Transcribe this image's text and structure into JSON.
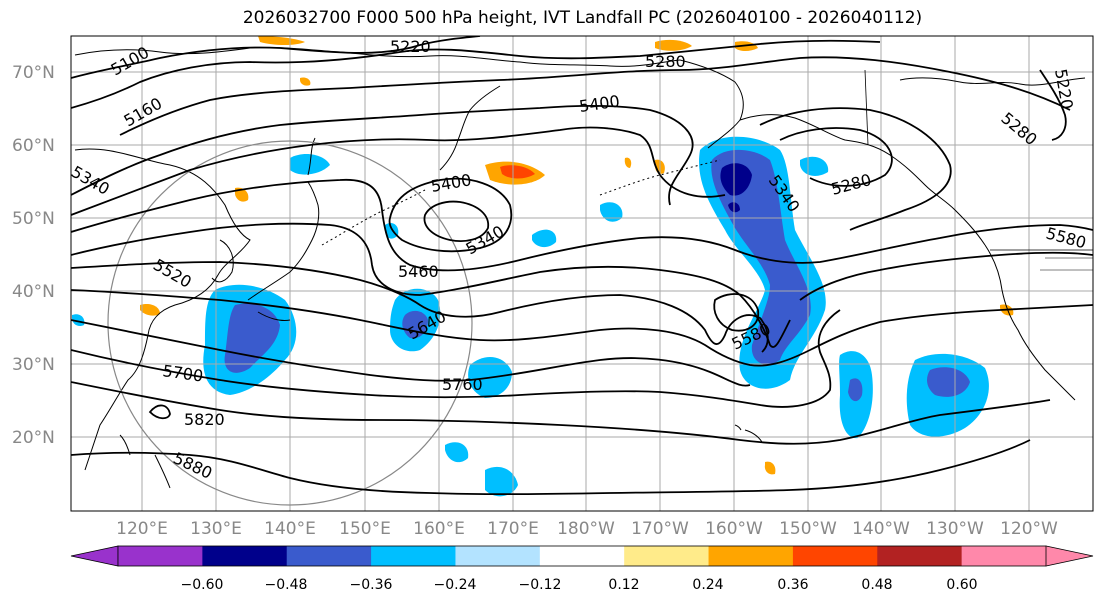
{
  "title": "2026032700 F000 500 hPa height, IVT Landfall PC (2026040100 - 2026040112)",
  "map": {
    "lat_labels": [
      "70°N",
      "60°N",
      "50°N",
      "40°N",
      "30°N",
      "20°N"
    ],
    "lon_labels": [
      "120°E",
      "130°E",
      "140°E",
      "150°E",
      "160°E",
      "170°E",
      "180°W",
      "170°W",
      "160°W",
      "150°W",
      "140°W",
      "130°W",
      "120°W"
    ],
    "contour_labels": [
      "5100",
      "5160",
      "5220",
      "5280",
      "5400",
      "5340",
      "5400",
      "5340",
      "5460",
      "5520",
      "5640",
      "5700",
      "5760",
      "5820",
      "5880",
      "5340",
      "5280",
      "5580",
      "5580",
      "5280",
      "5220"
    ],
    "colors": {
      "line": "#000000",
      "grid": "#aaaaaa",
      "circle": "#888888",
      "neg_light": "#b3e3ff",
      "neg_cyan": "#00bfff",
      "neg_mid": "#3a5bcd",
      "neg_dark": "#00008b",
      "pos_yellow": "#ffeb8a",
      "pos_orange": "#ffa500",
      "pos_red": "#ff4500"
    }
  },
  "colorbar": {
    "ticks": [
      "−0.60",
      "−0.48",
      "−0.36",
      "−0.24",
      "−0.12",
      "0.12",
      "0.24",
      "0.36",
      "0.48",
      "0.60"
    ],
    "colors": [
      "#9932cc",
      "#00008b",
      "#3a5bcd",
      "#00bfff",
      "#b3e3ff",
      "#ffffff",
      "#ffeb8a",
      "#ffa500",
      "#ff4500",
      "#b22222",
      "#ff88aa"
    ]
  }
}
